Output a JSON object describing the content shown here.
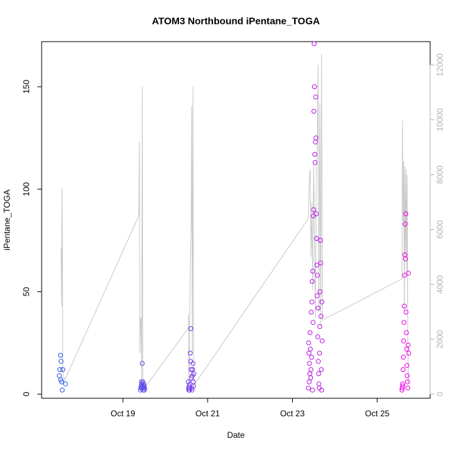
{
  "chart_data": {
    "type": "scatter",
    "title": "ATOM3 Northbound iPentane_TOGA",
    "xlabel": "Date",
    "ylabel": "iPentane_TOGA",
    "xlim": [
      "2017-10-17T02:00",
      "2017-10-26T06:00"
    ],
    "ylim": [
      -2,
      172
    ],
    "y_right_lim": [
      -150,
      12850
    ],
    "x_ticks": [
      {
        "date": "2017-10-19T00:00",
        "label": "Oct 19"
      },
      {
        "date": "2017-10-21T00:00",
        "label": "Oct 21"
      },
      {
        "date": "2017-10-23T00:00",
        "label": "Oct 23"
      },
      {
        "date": "2017-10-25T00:00",
        "label": "Oct 25"
      }
    ],
    "y_ticks": [
      0,
      50,
      100,
      150
    ],
    "y_right_ticks": [
      0,
      2000,
      4000,
      6000,
      8000,
      10000,
      12000
    ],
    "grid": false,
    "background_series": {
      "color": "#c8c8c8",
      "points": [
        [
          "2017-10-17T13:00",
          5300
        ],
        [
          "2017-10-17T13:10",
          4200
        ],
        [
          "2017-10-17T13:20",
          3200
        ],
        [
          "2017-10-17T13:30",
          7500
        ],
        [
          "2017-10-17T13:40",
          6500
        ],
        [
          "2017-10-17T13:50",
          4800
        ],
        [
          "2017-10-17T14:00",
          800
        ],
        [
          "2017-10-17T15:00",
          500
        ],
        [
          "2017-10-19T09:00",
          6500
        ],
        [
          "2017-10-19T09:20",
          9200
        ],
        [
          "2017-10-19T09:40",
          1500
        ],
        [
          "2017-10-19T10:00",
          2700
        ],
        [
          "2017-10-19T10:20",
          2800
        ],
        [
          "2017-10-19T10:40",
          300
        ],
        [
          "2017-10-19T11:00",
          11200
        ],
        [
          "2017-10-19T11:20",
          500
        ],
        [
          "2017-10-19T12:00",
          200
        ],
        [
          "2017-10-20T13:00",
          2400
        ],
        [
          "2017-10-20T13:10",
          2900
        ],
        [
          "2017-10-20T13:20",
          400
        ],
        [
          "2017-10-20T13:40",
          1200
        ],
        [
          "2017-10-20T14:00",
          3500
        ],
        [
          "2017-10-20T14:20",
          5500
        ],
        [
          "2017-10-20T14:40",
          6100
        ],
        [
          "2017-10-20T15:00",
          10500
        ],
        [
          "2017-10-20T15:20",
          1500
        ],
        [
          "2017-10-20T15:40",
          11200
        ],
        [
          "2017-10-20T16:00",
          300
        ],
        [
          "2017-10-23T09:00",
          6400
        ],
        [
          "2017-10-23T09:30",
          7700
        ],
        [
          "2017-10-23T10:00",
          8200
        ],
        [
          "2017-10-23T10:30",
          5000
        ],
        [
          "2017-10-23T11:00",
          7000
        ],
        [
          "2017-10-23T11:30",
          3800
        ],
        [
          "2017-10-23T12:00",
          8400
        ],
        [
          "2017-10-23T12:30",
          6000
        ],
        [
          "2017-10-23T13:00",
          2800
        ],
        [
          "2017-10-23T13:30",
          7300
        ],
        [
          "2017-10-23T14:00",
          8800
        ],
        [
          "2017-10-23T14:30",
          12000
        ],
        [
          "2017-10-23T15:00",
          3000
        ],
        [
          "2017-10-23T15:30",
          10600
        ],
        [
          "2017-10-23T16:00",
          2500
        ],
        [
          "2017-10-23T16:30",
          12400
        ],
        [
          "2017-10-23T17:00",
          2700
        ],
        [
          "2017-10-25T14:00",
          4200
        ],
        [
          "2017-10-25T14:20",
          10000
        ],
        [
          "2017-10-25T14:40",
          6300
        ],
        [
          "2017-10-25T15:00",
          8500
        ],
        [
          "2017-10-25T15:20",
          3000
        ],
        [
          "2017-10-25T15:40",
          8300
        ],
        [
          "2017-10-25T16:00",
          5000
        ],
        [
          "2017-10-25T16:20",
          8200
        ],
        [
          "2017-10-25T16:40",
          4400
        ],
        [
          "2017-10-25T17:00",
          8000
        ],
        [
          "2017-10-25T17:20",
          2000
        ],
        [
          "2017-10-25T17:40",
          400
        ]
      ]
    },
    "points": [
      [
        "2017-10-17T12:00",
        9
      ],
      [
        "2017-10-17T12:20",
        12
      ],
      [
        "2017-10-17T12:40",
        19
      ],
      [
        "2017-10-17T13:00",
        16
      ],
      [
        "2017-10-17T13:20",
        6
      ],
      [
        "2017-10-17T13:40",
        2
      ],
      [
        "2017-10-17T14:00",
        12
      ],
      [
        "2017-10-17T15:30",
        5
      ],
      [
        "2017-10-17T12:50",
        7
      ],
      [
        "2017-10-19T10:00",
        2
      ],
      [
        "2017-10-19T10:10",
        3
      ],
      [
        "2017-10-19T10:20",
        4
      ],
      [
        "2017-10-19T10:30",
        6
      ],
      [
        "2017-10-19T10:40",
        5
      ],
      [
        "2017-10-19T10:50",
        3
      ],
      [
        "2017-10-19T11:00",
        15
      ],
      [
        "2017-10-19T11:10",
        4
      ],
      [
        "2017-10-19T11:20",
        6
      ],
      [
        "2017-10-19T11:30",
        2
      ],
      [
        "2017-10-19T11:40",
        3
      ],
      [
        "2017-10-19T11:50",
        5
      ],
      [
        "2017-10-19T12:00",
        4
      ],
      [
        "2017-10-19T12:10",
        2
      ],
      [
        "2017-10-19T12:20",
        3
      ],
      [
        "2017-10-20T13:00",
        6
      ],
      [
        "2017-10-20T13:10",
        3
      ],
      [
        "2017-10-20T13:20",
        2
      ],
      [
        "2017-10-20T13:30",
        4
      ],
      [
        "2017-10-20T13:40",
        2
      ],
      [
        "2017-10-20T13:50",
        3
      ],
      [
        "2017-10-20T14:00",
        5
      ],
      [
        "2017-10-20T14:10",
        20
      ],
      [
        "2017-10-20T14:20",
        16
      ],
      [
        "2017-10-20T14:30",
        32
      ],
      [
        "2017-10-20T14:40",
        12
      ],
      [
        "2017-10-20T14:50",
        8
      ],
      [
        "2017-10-20T15:00",
        3
      ],
      [
        "2017-10-20T15:10",
        2
      ],
      [
        "2017-10-20T15:20",
        9
      ],
      [
        "2017-10-20T15:30",
        12
      ],
      [
        "2017-10-20T15:40",
        15
      ],
      [
        "2017-10-20T15:50",
        6
      ],
      [
        "2017-10-20T16:00",
        4
      ],
      [
        "2017-10-20T16:10",
        10
      ],
      [
        "2017-10-23T09:00",
        3
      ],
      [
        "2017-10-23T09:10",
        25
      ],
      [
        "2017-10-23T09:20",
        20
      ],
      [
        "2017-10-23T09:30",
        6
      ],
      [
        "2017-10-23T09:40",
        15
      ],
      [
        "2017-10-23T09:50",
        10
      ],
      [
        "2017-10-23T10:00",
        30
      ],
      [
        "2017-10-23T10:10",
        22
      ],
      [
        "2017-10-23T10:20",
        8
      ],
      [
        "2017-10-23T10:30",
        12
      ],
      [
        "2017-10-23T10:40",
        40
      ],
      [
        "2017-10-23T10:50",
        18
      ],
      [
        "2017-10-23T11:00",
        45
      ],
      [
        "2017-10-23T11:10",
        55
      ],
      [
        "2017-10-23T11:20",
        2
      ],
      [
        "2017-10-23T11:30",
        60
      ],
      [
        "2017-10-23T11:40",
        35
      ],
      [
        "2017-10-23T11:50",
        87
      ],
      [
        "2017-10-23T12:00",
        90
      ],
      [
        "2017-10-23T12:10",
        138
      ],
      [
        "2017-10-23T12:20",
        171
      ],
      [
        "2017-10-23T12:30",
        150
      ],
      [
        "2017-10-23T12:40",
        117
      ],
      [
        "2017-10-23T12:50",
        113
      ],
      [
        "2017-10-23T13:00",
        123
      ],
      [
        "2017-10-23T13:10",
        145
      ],
      [
        "2017-10-23T13:20",
        125
      ],
      [
        "2017-10-23T13:30",
        88
      ],
      [
        "2017-10-23T13:40",
        76
      ],
      [
        "2017-10-23T13:50",
        63
      ],
      [
        "2017-10-23T14:00",
        48
      ],
      [
        "2017-10-23T14:10",
        58
      ],
      [
        "2017-10-23T14:20",
        28
      ],
      [
        "2017-10-23T14:30",
        42
      ],
      [
        "2017-10-23T14:40",
        16
      ],
      [
        "2017-10-23T14:50",
        10
      ],
      [
        "2017-10-23T15:00",
        5
      ],
      [
        "2017-10-23T15:10",
        3
      ],
      [
        "2017-10-23T15:20",
        20
      ],
      [
        "2017-10-23T15:30",
        33
      ],
      [
        "2017-10-23T15:40",
        50
      ],
      [
        "2017-10-23T15:50",
        75
      ],
      [
        "2017-10-23T16:00",
        64
      ],
      [
        "2017-10-23T16:10",
        38
      ],
      [
        "2017-10-23T16:20",
        12
      ],
      [
        "2017-10-23T16:30",
        2
      ],
      [
        "2017-10-23T16:40",
        45
      ],
      [
        "2017-10-23T16:50",
        26
      ],
      [
        "2017-10-25T14:00",
        2
      ],
      [
        "2017-10-25T14:10",
        3
      ],
      [
        "2017-10-25T14:20",
        5
      ],
      [
        "2017-10-25T14:30",
        4
      ],
      [
        "2017-10-25T14:40",
        12
      ],
      [
        "2017-10-25T14:50",
        18
      ],
      [
        "2017-10-25T15:00",
        26
      ],
      [
        "2017-10-25T15:10",
        35
      ],
      [
        "2017-10-25T15:20",
        43
      ],
      [
        "2017-10-25T15:30",
        58
      ],
      [
        "2017-10-25T15:40",
        68
      ],
      [
        "2017-10-25T15:50",
        83
      ],
      [
        "2017-10-25T16:00",
        66
      ],
      [
        "2017-10-25T16:10",
        88
      ],
      [
        "2017-10-25T16:20",
        40
      ],
      [
        "2017-10-25T16:30",
        30
      ],
      [
        "2017-10-25T16:40",
        22
      ],
      [
        "2017-10-25T16:50",
        14
      ],
      [
        "2017-10-25T17:00",
        9
      ],
      [
        "2017-10-25T17:10",
        6
      ],
      [
        "2017-10-25T17:20",
        3
      ],
      [
        "2017-10-25T17:30",
        24
      ],
      [
        "2017-10-25T17:40",
        59
      ],
      [
        "2017-10-25T17:50",
        20
      ]
    ]
  }
}
